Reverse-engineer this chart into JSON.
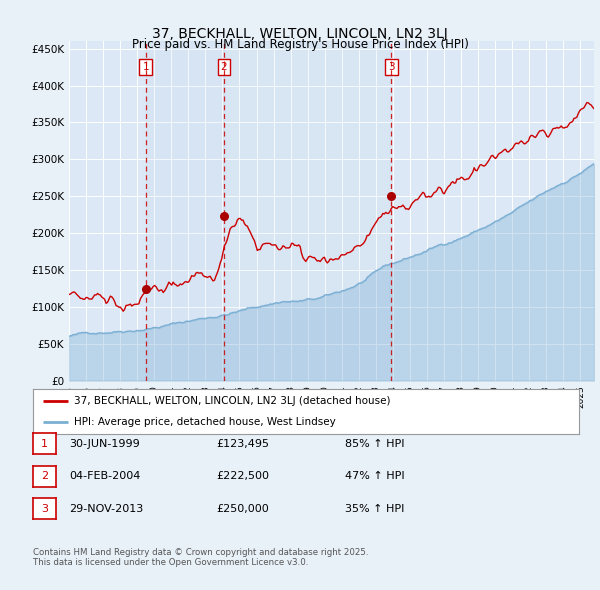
{
  "title": "37, BECKHALL, WELTON, LINCOLN, LN2 3LJ",
  "subtitle": "Price paid vs. HM Land Registry's House Price Index (HPI)",
  "background_color": "#e8f0f8",
  "plot_bg_color": "#dce8f5",
  "grid_color": "#ffffff",
  "ylim": [
    0,
    460000
  ],
  "yticks": [
    0,
    50000,
    100000,
    150000,
    200000,
    250000,
    300000,
    350000,
    400000,
    450000
  ],
  "transactions": [
    {
      "date_num": 1999.5,
      "price": 123495,
      "label": "1"
    },
    {
      "date_num": 2004.09,
      "price": 222500,
      "label": "2"
    },
    {
      "date_num": 2013.91,
      "price": 250000,
      "label": "3"
    }
  ],
  "vline_dates": [
    1999.5,
    2004.09,
    2013.91
  ],
  "legend_entries": [
    "37, BECKHALL, WELTON, LINCOLN, LN2 3LJ (detached house)",
    "HPI: Average price, detached house, West Lindsey"
  ],
  "table_rows": [
    {
      "num": "1",
      "date": "30-JUN-1999",
      "price": "£123,495",
      "change": "85% ↑ HPI"
    },
    {
      "num": "2",
      "date": "04-FEB-2004",
      "price": "£222,500",
      "change": "47% ↑ HPI"
    },
    {
      "num": "3",
      "date": "29-NOV-2013",
      "price": "£250,000",
      "change": "35% ↑ HPI"
    }
  ],
  "footnote": "Contains HM Land Registry data © Crown copyright and database right 2025.\nThis data is licensed under the Open Government Licence v3.0.",
  "hpi_color": "#7bafd4",
  "price_color": "#cc0000",
  "marker_color": "#aa0000",
  "vline_color": "#cc0000",
  "label_box_color": "#cc0000",
  "xstart": 1995.0,
  "xend": 2025.8
}
